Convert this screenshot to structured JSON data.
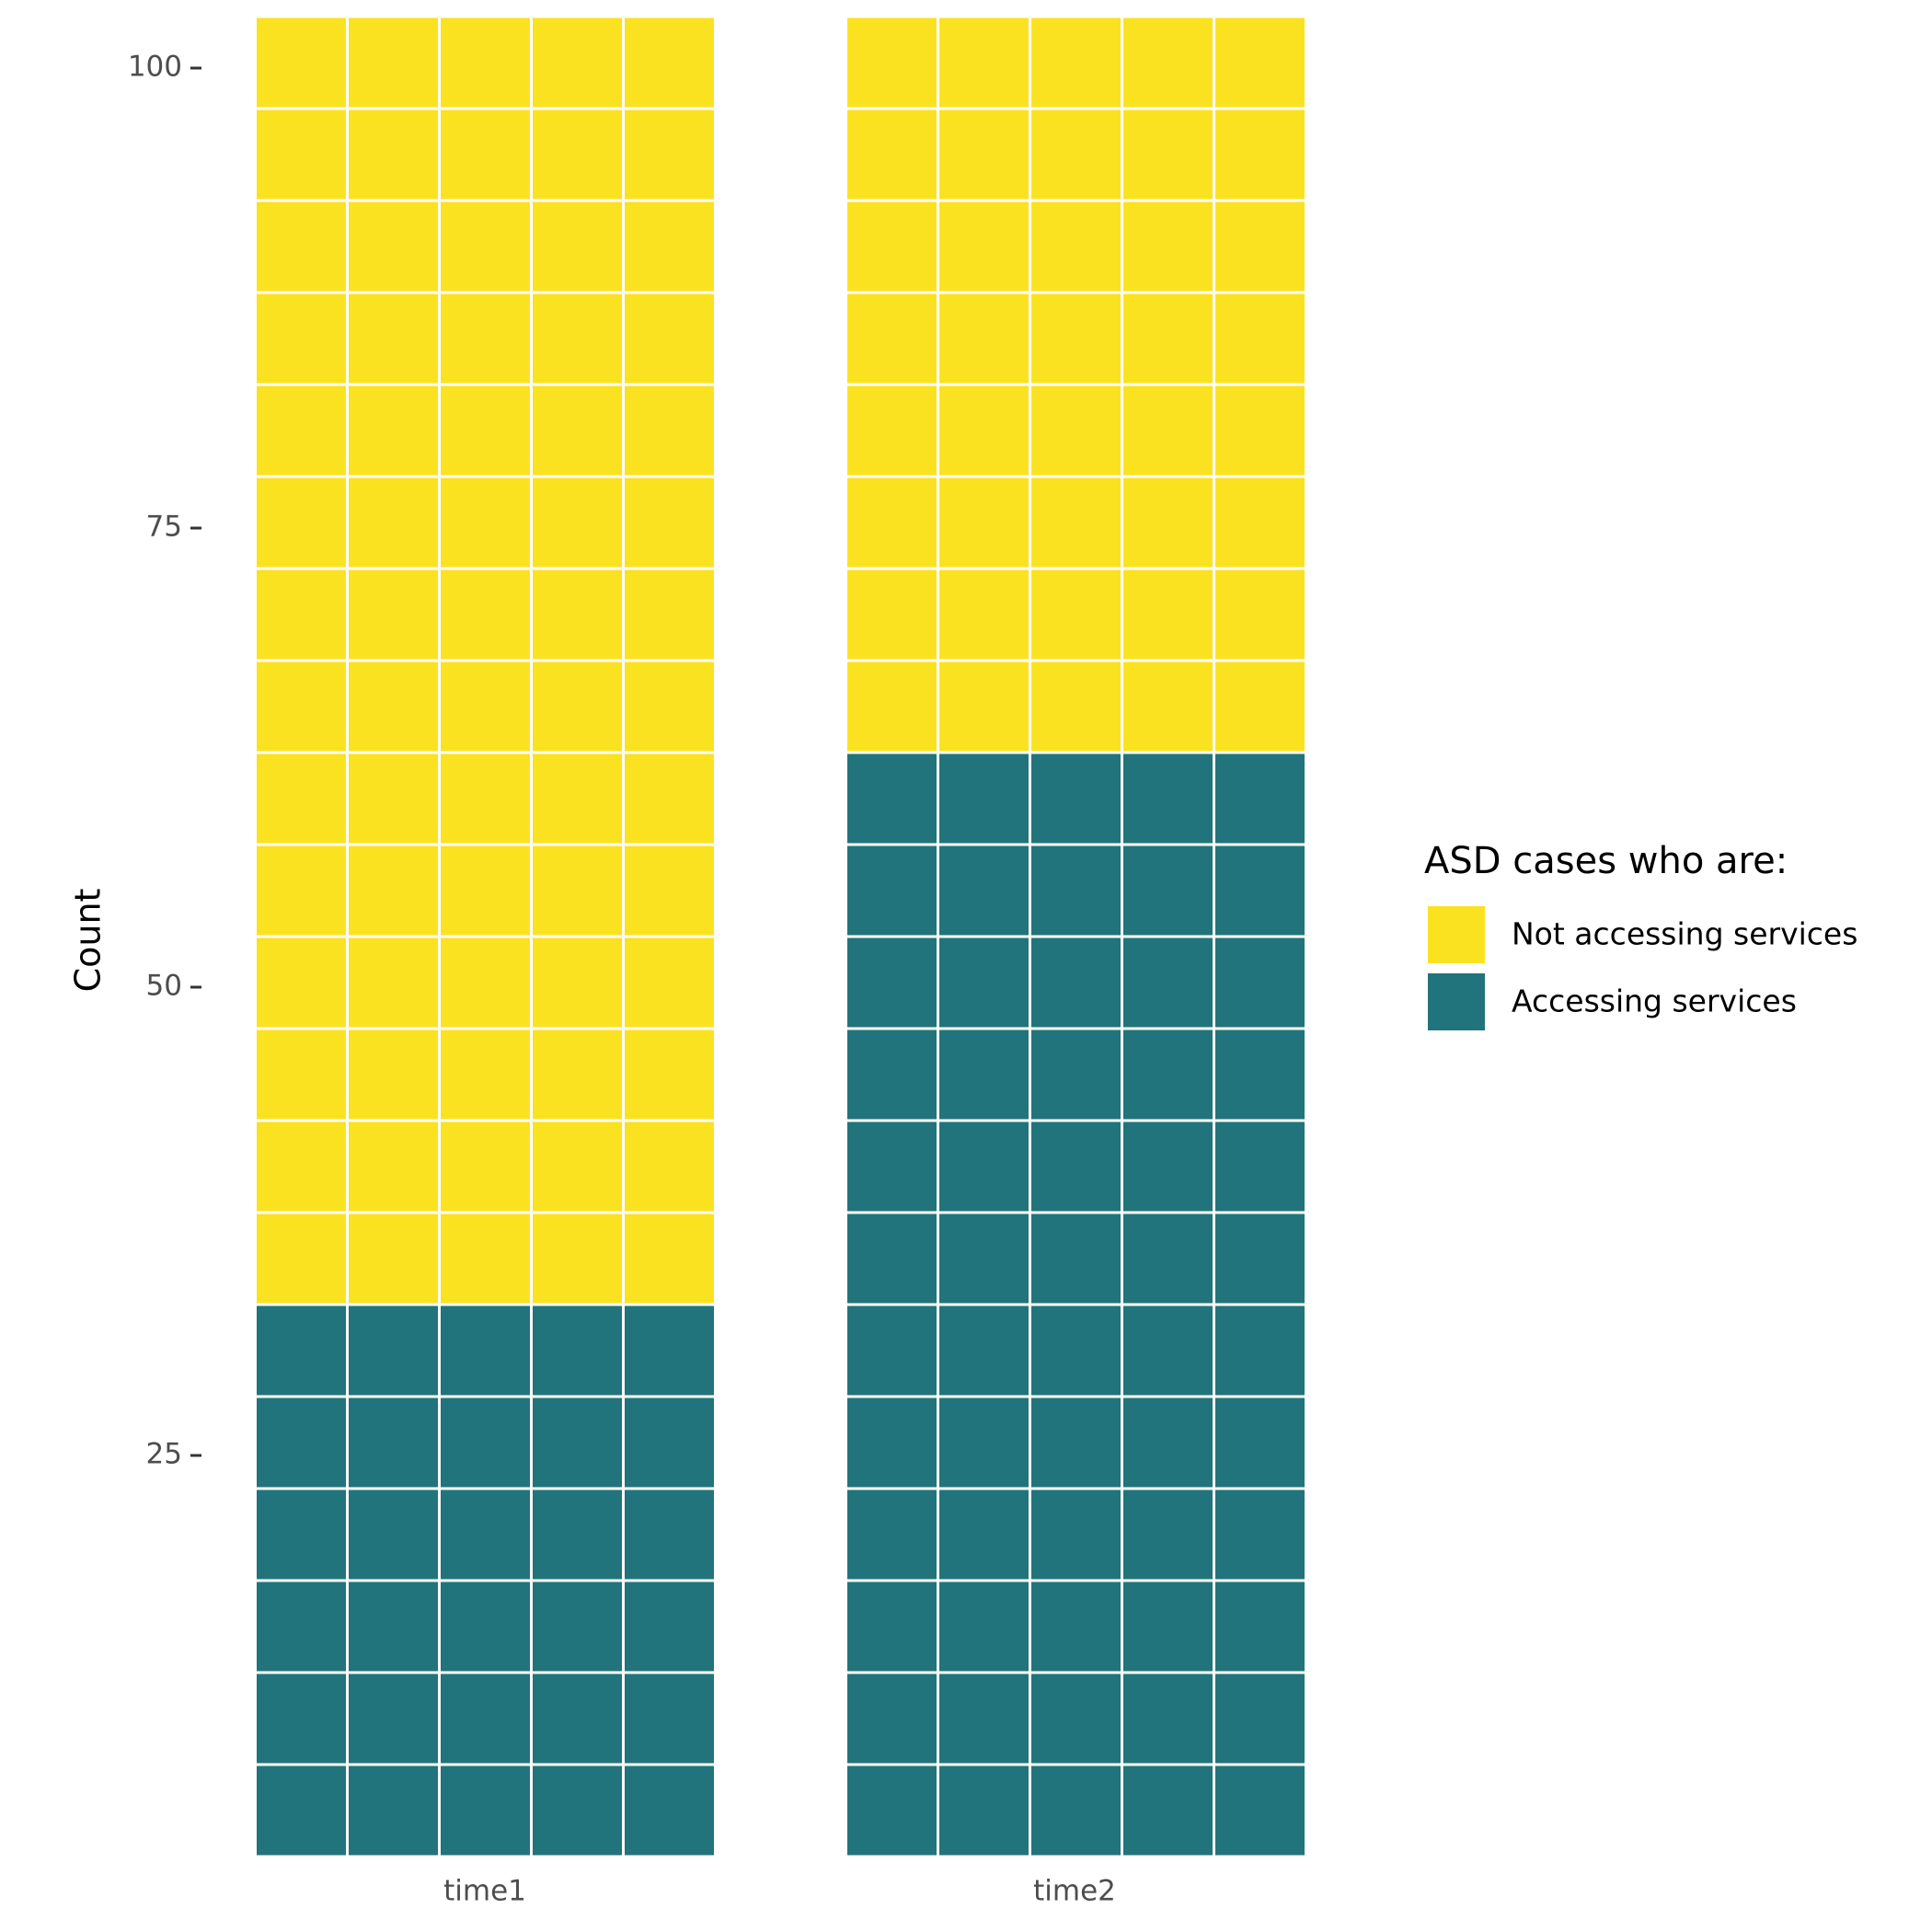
{
  "chart_data": {
    "type": "waffle",
    "ylabel": "Count",
    "y_ticks": [
      "25",
      "50",
      "75",
      "100"
    ],
    "ylim": [
      0,
      100
    ],
    "columns_per_row": 5,
    "categories": [
      "time1",
      "time2"
    ],
    "series": [
      {
        "name": "Accessing services",
        "values": [
          30,
          60
        ],
        "color": "#21747B"
      },
      {
        "name": "Not accessing services",
        "values": [
          70,
          40
        ],
        "color": "#FBE220"
      }
    ],
    "legend": {
      "title": "ASD cases who are:",
      "position": "right",
      "items": [
        {
          "label": "Not accessing services",
          "color": "#FBE220"
        },
        {
          "label": "Accessing services",
          "color": "#21747B"
        }
      ]
    },
    "grid": false
  }
}
